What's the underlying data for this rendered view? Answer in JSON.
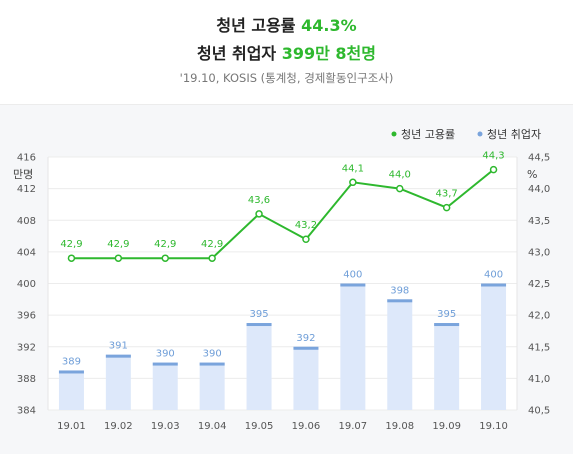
{
  "header": {
    "line1_prefix": "청년 고용률",
    "line1_value": "44.3%",
    "line2_prefix": "청년 취업자",
    "line2_value": "399만 8천명",
    "source": "'19.10, KOSIS (통계청, 경제활동인구조사)"
  },
  "colors": {
    "line": "#2eb82e",
    "bar_fill": "#dde8fa",
    "bar_top": "#7aa4dc",
    "bar_label": "#6f9ed8",
    "highlight": "#2eb82e"
  },
  "chart_data": {
    "type": "bar+line",
    "categories": [
      "19.01",
      "19.02",
      "19.03",
      "19.04",
      "19.05",
      "19.06",
      "19.07",
      "19.08",
      "19.09",
      "19.10"
    ],
    "series": [
      {
        "name": "청년 취업자",
        "type": "bar",
        "axis": "left",
        "values": [
          389,
          391,
          390,
          390,
          395,
          392,
          400,
          398,
          395,
          400
        ],
        "labels": [
          "389",
          "391",
          "390",
          "390",
          "395",
          "392",
          "400",
          "398",
          "395",
          "400"
        ]
      },
      {
        "name": "청년 고용률",
        "type": "line",
        "axis": "right",
        "values": [
          42.9,
          42.9,
          42.9,
          42.9,
          43.6,
          43.2,
          44.1,
          44.0,
          43.7,
          44.3
        ],
        "labels": [
          "42,9",
          "42,9",
          "42,9",
          "42,9",
          "43,6",
          "43,2",
          "44,1",
          "44,0",
          "43,7",
          "44,3"
        ]
      }
    ],
    "y_left": {
      "unit": "만명",
      "min": 384,
      "max": 416,
      "ticks": [
        "384",
        "388",
        "392",
        "396",
        "400",
        "404",
        "408",
        "412",
        "416"
      ]
    },
    "y_right": {
      "unit": "%",
      "min": 40.5,
      "max": 44.5,
      "ticks": [
        "40,5",
        "41,0",
        "41,5",
        "42,0",
        "42,5",
        "43,0",
        "43,5",
        "44,0",
        "44,5"
      ]
    },
    "legend": {
      "position": "top-right",
      "items": [
        {
          "label": "청년 고용률",
          "color": "#2eb82e"
        },
        {
          "label": "청년 취업자",
          "color": "#7aa4dc"
        }
      ]
    },
    "grid": true
  }
}
